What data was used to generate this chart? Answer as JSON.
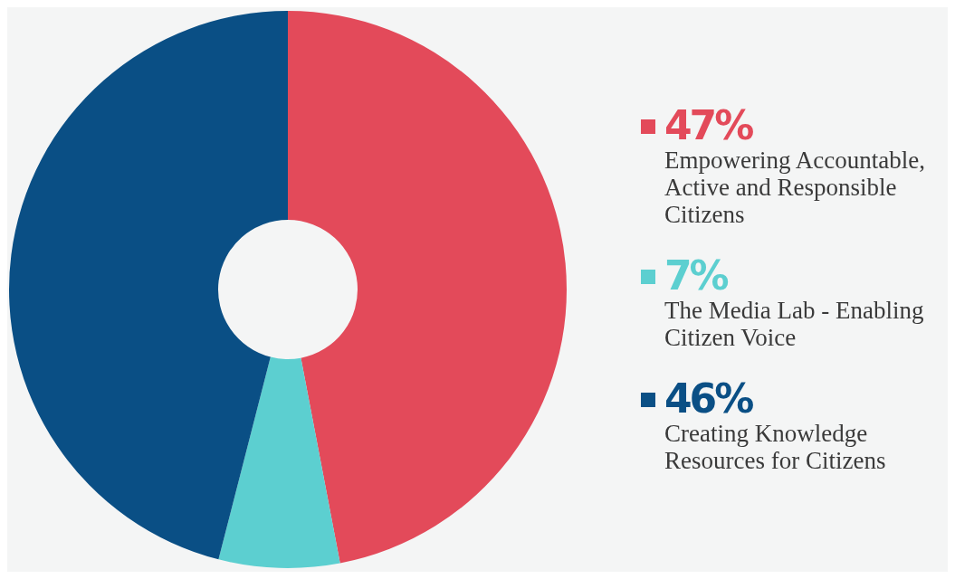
{
  "chart_data": {
    "type": "donut",
    "categories": [
      "Empowering Accountable, Active and Responsible Citizens",
      "The Media Lab - Enabling Citizen Voice",
      "Creating Knowledge Resources for Citizens"
    ],
    "values": [
      47,
      7,
      46
    ],
    "colors": [
      "#e34a5a",
      "#5ccfd0",
      "#0a4f85"
    ],
    "value_labels": [
      "47%",
      "7%",
      "46%"
    ],
    "legend": "right"
  }
}
